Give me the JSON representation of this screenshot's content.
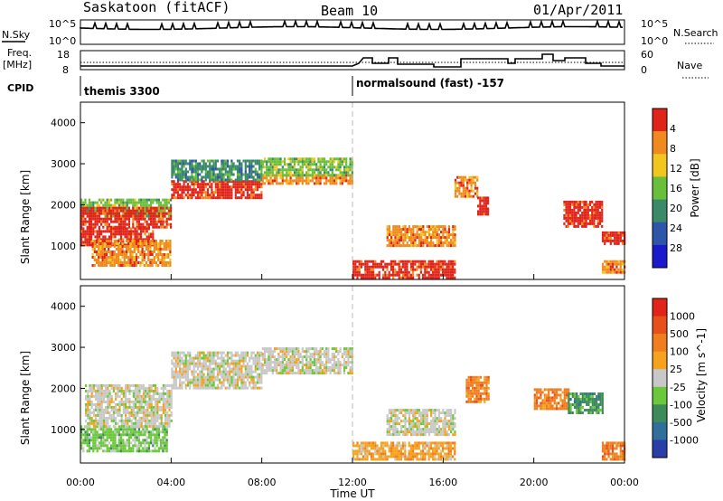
{
  "header": {
    "station": "Saskatoon (fitACF)",
    "beam": "Beam 10",
    "date": "01/Apr/2011"
  },
  "noise_panel": {
    "left_label": "N.Sky",
    "left_ticks": [
      "10^5",
      "10^0"
    ],
    "right_label": "N.Search",
    "right_ticks": [
      "10^5",
      "10^0"
    ]
  },
  "freq_panel": {
    "left_label_line1": "Freq.",
    "left_label_line2": "[MHz]",
    "left_ticks": [
      "18",
      "8"
    ],
    "right_label": "Nave",
    "right_ticks": [
      "60",
      "0"
    ]
  },
  "cpid": {
    "label": "CPID",
    "programs": [
      {
        "name": "themis 3300",
        "start_hour": 0
      },
      {
        "name": "normalsound (fast) -157",
        "start_hour": 12
      }
    ]
  },
  "x_axis": {
    "label": "Time UT",
    "ticks": [
      "00:00",
      "04:00",
      "08:00",
      "12:00",
      "16:00",
      "20:00",
      "00:00"
    ]
  },
  "power_panel": {
    "ylabel": "Slant Range [km]",
    "yticks": [
      "1000",
      "2000",
      "3000",
      "4000"
    ],
    "colorbar_label": "Power [dB]",
    "colorbar_ticks": [
      "4",
      "8",
      "12",
      "16",
      "20",
      "24",
      "28"
    ],
    "colors": [
      "#1a1acc",
      "#2d55a8",
      "#3a8a6a",
      "#6abf3a",
      "#f2c61f",
      "#f08a1e",
      "#e0241a"
    ]
  },
  "velocity_panel": {
    "ylabel": "Slant Range [km]",
    "yticks": [
      "1000",
      "2000",
      "3000",
      "4000"
    ],
    "colorbar_label": "Velocity [m s^-1]",
    "colorbar_ticks": [
      "1000",
      "500",
      "100",
      "25",
      "-25",
      "-100",
      "-500",
      "-1000"
    ],
    "colors": [
      "#2a3ea8",
      "#2f6f9a",
      "#3d8a5a",
      "#6ac83a",
      "#c8c8c8",
      "#f5a21e",
      "#f07d1e",
      "#e8501a",
      "#e0241a"
    ]
  },
  "chart_data": {
    "type": "heatmap",
    "x_unit": "hours UT",
    "xlim": [
      0,
      24
    ],
    "ylim_km": [
      180,
      4500
    ],
    "power_regions": [
      {
        "t0": 0.0,
        "t1": 4.0,
        "r_start": 1750,
        "r_end": 2150,
        "level": 3
      },
      {
        "t0": 0.0,
        "t1": 4.0,
        "r_start": 1450,
        "r_end": 1950,
        "level": 6
      },
      {
        "t0": 0.0,
        "t1": 3.2,
        "r_start": 1050,
        "r_end": 1450,
        "level": 6
      },
      {
        "t0": 0.5,
        "t1": 4.0,
        "r_start": 550,
        "r_end": 1150,
        "level": 5
      },
      {
        "t0": 4.0,
        "t1": 8.0,
        "r_start": 2200,
        "r_end": 2600,
        "level": 6
      },
      {
        "t0": 4.0,
        "t1": 8.0,
        "r_start": 2600,
        "r_end": 3100,
        "level": 2
      },
      {
        "t0": 8.0,
        "t1": 12.0,
        "r_start": 2500,
        "r_end": 2750,
        "level": 5
      },
      {
        "t0": 8.0,
        "t1": 12.0,
        "r_start": 2750,
        "r_end": 3150,
        "level": 3
      },
      {
        "t0": 12.0,
        "t1": 16.5,
        "r_start": 250,
        "r_end": 650,
        "level": 6
      },
      {
        "t0": 13.5,
        "t1": 16.5,
        "r_start": 1000,
        "r_end": 1500,
        "level": 5
      },
      {
        "t0": 16.5,
        "t1": 17.5,
        "r_start": 2200,
        "r_end": 2700,
        "level": 5
      },
      {
        "t0": 17.5,
        "t1": 18.0,
        "r_start": 1800,
        "r_end": 2200,
        "level": 6
      },
      {
        "t0": 21.3,
        "t1": 23.0,
        "r_start": 1500,
        "r_end": 2100,
        "level": 6
      },
      {
        "t0": 23.0,
        "t1": 24.0,
        "r_start": 1050,
        "r_end": 1350,
        "level": 6
      },
      {
        "t0": 23.0,
        "t1": 24.0,
        "r_start": 350,
        "r_end": 650,
        "level": 5
      }
    ],
    "velocity_regions": [
      {
        "t0": 0.0,
        "t1": 3.8,
        "r_start": 450,
        "r_end": 1100,
        "level": 3
      },
      {
        "t0": 0.2,
        "t1": 4.0,
        "r_start": 1100,
        "r_end": 2100,
        "level": 4
      },
      {
        "t0": 4.0,
        "t1": 8.0,
        "r_start": 2000,
        "r_end": 2900,
        "level": 4
      },
      {
        "t0": 8.0,
        "t1": 12.0,
        "r_start": 2400,
        "r_end": 3000,
        "level": 4
      },
      {
        "t0": 12.0,
        "t1": 16.5,
        "r_start": 250,
        "r_end": 700,
        "level": 5
      },
      {
        "t0": 13.5,
        "t1": 16.5,
        "r_start": 900,
        "r_end": 1500,
        "level": 4
      },
      {
        "t0": 17.0,
        "t1": 18.0,
        "r_start": 1700,
        "r_end": 2300,
        "level": 6
      },
      {
        "t0": 20.0,
        "t1": 21.5,
        "r_start": 1500,
        "r_end": 2000,
        "level": 6
      },
      {
        "t0": 21.5,
        "t1": 23.0,
        "r_start": 1400,
        "r_end": 1900,
        "level": 2
      },
      {
        "t0": 23.0,
        "t1": 24.0,
        "r_start": 300,
        "r_end": 700,
        "level": 6
      }
    ]
  }
}
